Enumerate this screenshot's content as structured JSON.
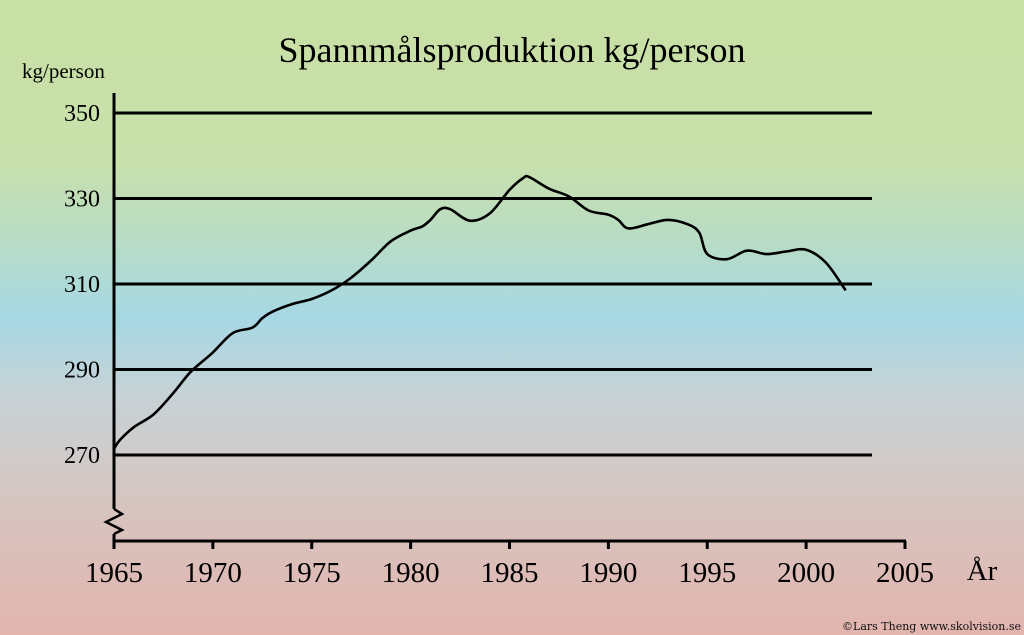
{
  "chart_data": {
    "type": "line",
    "title": "Spannmålsproduktion kg/person",
    "ylabel": "kg/person",
    "xlabel": "År",
    "xlim": [
      1965,
      2005
    ],
    "ylim": [
      250,
      350
    ],
    "y_axis_break": true,
    "grid": "horizontal",
    "xticks": [
      "1965",
      "1970",
      "1975",
      "1980",
      "1985",
      "1990",
      "1995",
      "2000",
      "2005"
    ],
    "yticks": [
      "350",
      "330",
      "310",
      "290",
      "270"
    ],
    "series": [
      {
        "values": [
          [
            1965,
            271.5
          ],
          [
            1965.3,
            273.5
          ],
          [
            1966,
            276.5
          ],
          [
            1967,
            279.5
          ],
          [
            1968,
            284.5
          ],
          [
            1968.6,
            288
          ],
          [
            1969,
            290
          ],
          [
            1970,
            294
          ],
          [
            1971,
            298.5
          ],
          [
            1972,
            299.8
          ],
          [
            1972.5,
            302
          ],
          [
            1973,
            303.5
          ],
          [
            1974,
            305.3
          ],
          [
            1975,
            306.5
          ],
          [
            1976,
            308.5
          ],
          [
            1977,
            311.5
          ],
          [
            1978,
            315.5
          ],
          [
            1979,
            320
          ],
          [
            1980,
            322.5
          ],
          [
            1980.6,
            323.5
          ],
          [
            1981,
            325
          ],
          [
            1981.5,
            327.5
          ],
          [
            1982,
            327.5
          ],
          [
            1983,
            324.8
          ],
          [
            1984,
            326.5
          ],
          [
            1985,
            332
          ],
          [
            1985.7,
            334.8
          ],
          [
            1986,
            335
          ],
          [
            1987,
            332.3
          ],
          [
            1988,
            330.5
          ],
          [
            1989,
            327.2
          ],
          [
            1990,
            326.2
          ],
          [
            1990.5,
            325
          ],
          [
            1991,
            323
          ],
          [
            1992,
            324
          ],
          [
            1993,
            325
          ],
          [
            1994,
            324
          ],
          [
            1994.6,
            322
          ],
          [
            1995,
            317
          ],
          [
            1996,
            315.8
          ],
          [
            1997,
            317.8
          ],
          [
            1998,
            317
          ],
          [
            1999,
            317.6
          ],
          [
            2000,
            318
          ],
          [
            2001,
            315
          ],
          [
            2002,
            308.5
          ]
        ]
      }
    ]
  },
  "credit": "©Lars Theng www.skolvision.se"
}
